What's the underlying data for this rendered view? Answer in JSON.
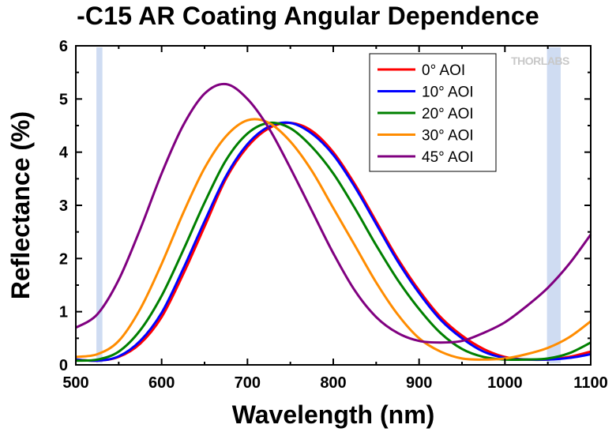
{
  "chart_data": {
    "type": "line",
    "title": "-C15 AR Coating Angular Dependence",
    "xlabel": "Wavelength (nm)",
    "ylabel": "Reflectance (%)",
    "xlim": [
      500,
      1100
    ],
    "ylim": [
      0,
      6
    ],
    "xticks": [
      500,
      600,
      700,
      800,
      900,
      1000,
      1100
    ],
    "yticks": [
      0,
      1,
      2,
      3,
      4,
      5,
      6
    ],
    "grid": false,
    "legend_position": "top-right",
    "watermark": "THORLABS",
    "shaded_regions": [
      {
        "x_start": 524,
        "x_end": 531,
        "color": "#cfdcf2"
      },
      {
        "x_start": 1049,
        "x_end": 1065,
        "color": "#cfdcf2"
      }
    ],
    "series": [
      {
        "name": "0° AOI",
        "color": "#ff0000",
        "x": [
          500,
          525,
          550,
          575,
          600,
          625,
          650,
          675,
          700,
          725,
          750,
          775,
          800,
          825,
          850,
          875,
          900,
          925,
          950,
          975,
          1000,
          1025,
          1050,
          1075,
          1100
        ],
        "y": [
          0.1,
          0.08,
          0.15,
          0.4,
          0.9,
          1.7,
          2.6,
          3.5,
          4.1,
          4.45,
          4.55,
          4.4,
          4.0,
          3.4,
          2.7,
          2.0,
          1.4,
          0.9,
          0.55,
          0.3,
          0.15,
          0.1,
          0.1,
          0.15,
          0.25
        ]
      },
      {
        "name": "10° AOI",
        "color": "#0000ff",
        "x": [
          500,
          525,
          550,
          575,
          600,
          625,
          650,
          675,
          700,
          725,
          750,
          775,
          800,
          825,
          850,
          875,
          900,
          925,
          950,
          975,
          1000,
          1025,
          1050,
          1075,
          1100
        ],
        "y": [
          0.1,
          0.08,
          0.16,
          0.45,
          0.98,
          1.8,
          2.7,
          3.55,
          4.15,
          4.48,
          4.55,
          4.35,
          3.95,
          3.35,
          2.65,
          1.95,
          1.35,
          0.85,
          0.5,
          0.25,
          0.13,
          0.1,
          0.1,
          0.13,
          0.2
        ]
      },
      {
        "name": "20° AOI",
        "color": "#008000",
        "x": [
          500,
          525,
          550,
          575,
          600,
          625,
          650,
          675,
          700,
          725,
          750,
          775,
          800,
          825,
          850,
          875,
          900,
          925,
          950,
          975,
          1000,
          1025,
          1050,
          1075,
          1100
        ],
        "y": [
          0.08,
          0.1,
          0.25,
          0.65,
          1.3,
          2.15,
          3.05,
          3.85,
          4.35,
          4.55,
          4.45,
          4.1,
          3.6,
          2.95,
          2.25,
          1.6,
          1.05,
          0.6,
          0.3,
          0.15,
          0.1,
          0.1,
          0.12,
          0.22,
          0.42
        ]
      },
      {
        "name": "30° AOI",
        "color": "#ff8c00",
        "x": [
          500,
          525,
          550,
          575,
          600,
          625,
          650,
          675,
          700,
          725,
          750,
          775,
          800,
          825,
          850,
          875,
          900,
          925,
          950,
          975,
          1000,
          1025,
          1050,
          1075,
          1100
        ],
        "y": [
          0.15,
          0.2,
          0.45,
          1.05,
          1.9,
          2.85,
          3.7,
          4.3,
          4.6,
          4.55,
          4.2,
          3.65,
          2.95,
          2.25,
          1.55,
          0.95,
          0.5,
          0.25,
          0.12,
          0.1,
          0.12,
          0.2,
          0.32,
          0.52,
          0.82
        ]
      },
      {
        "name": "45° AOI",
        "color": "#800080",
        "x": [
          500,
          525,
          550,
          575,
          600,
          625,
          650,
          675,
          700,
          725,
          750,
          775,
          800,
          825,
          850,
          875,
          900,
          925,
          950,
          975,
          1000,
          1025,
          1050,
          1075,
          1100
        ],
        "y": [
          0.7,
          0.95,
          1.6,
          2.55,
          3.6,
          4.5,
          5.1,
          5.28,
          5.0,
          4.45,
          3.7,
          2.9,
          2.1,
          1.4,
          0.9,
          0.6,
          0.45,
          0.42,
          0.45,
          0.6,
          0.8,
          1.1,
          1.45,
          1.9,
          2.45
        ]
      }
    ]
  }
}
